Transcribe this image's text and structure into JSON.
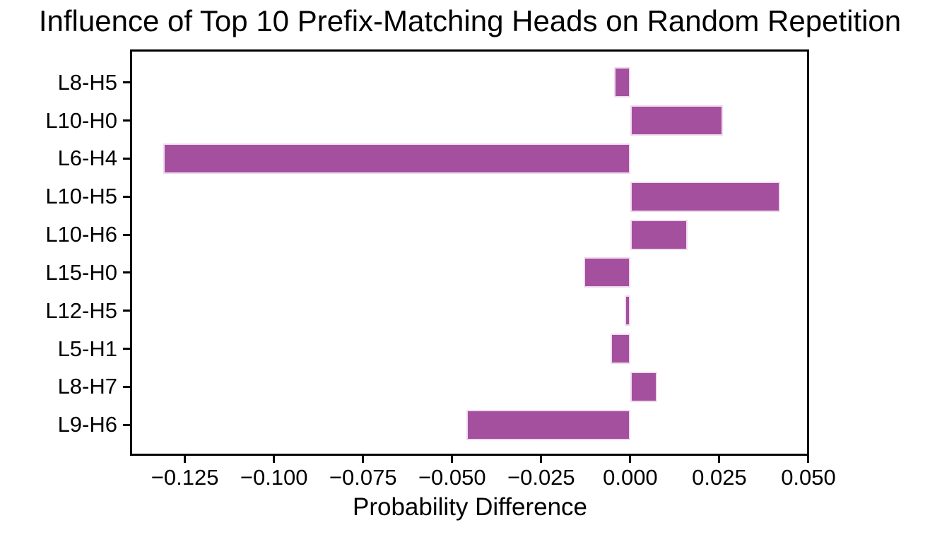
{
  "chart_data": {
    "type": "bar",
    "orientation": "horizontal",
    "title": "Influence of Top 10 Prefix-Matching Heads on Random Repetition",
    "xlabel": "Probability Difference",
    "ylabel": "",
    "categories": [
      "L8-H5",
      "L10-H0",
      "L6-H4",
      "L10-H5",
      "L10-H6",
      "L15-H0",
      "L12-H5",
      "L5-H1",
      "L8-H7",
      "L9-H6"
    ],
    "values": [
      -0.0045,
      0.026,
      -0.131,
      0.042,
      0.016,
      -0.013,
      -0.0015,
      -0.0055,
      0.0075,
      -0.046
    ],
    "xlim": [
      -0.1404,
      0.0502
    ],
    "xticks": [
      -0.125,
      -0.1,
      -0.075,
      -0.05,
      -0.025,
      0,
      0.025,
      0.05
    ],
    "xtick_labels": [
      "−0.125",
      "−0.100",
      "−0.075",
      "−0.050",
      "−0.025",
      "0.000",
      "0.025",
      "0.050"
    ],
    "grid": false,
    "legend": false,
    "bar_color": "#A4509F",
    "bar_edge_color": "#F0DBEF",
    "axis_color": "#000000",
    "background": "#FFFFFF"
  }
}
